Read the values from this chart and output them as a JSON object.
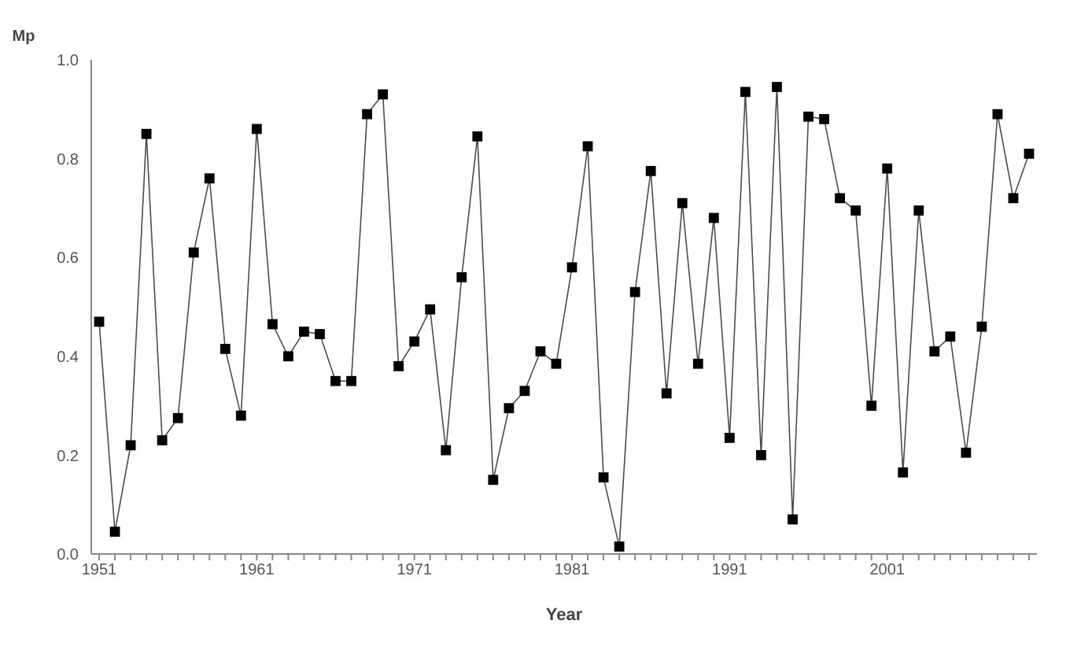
{
  "chart_data": {
    "type": "line",
    "xlabel": "Year",
    "ylabel": "Mp",
    "x": [
      1951,
      1952,
      1953,
      1954,
      1955,
      1956,
      1957,
      1958,
      1959,
      1960,
      1961,
      1962,
      1963,
      1964,
      1965,
      1966,
      1967,
      1968,
      1969,
      1970,
      1971,
      1972,
      1973,
      1974,
      1975,
      1976,
      1977,
      1978,
      1979,
      1980,
      1981,
      1982,
      1983,
      1984,
      1985,
      1986,
      1987,
      1988,
      1989,
      1990,
      1991,
      1992,
      1993,
      1994,
      1995,
      1996,
      1997,
      1998,
      1999,
      2000,
      2001,
      2002,
      2003,
      2004,
      2005,
      2006,
      2007,
      2008,
      2009,
      2010
    ],
    "series": [
      {
        "color": "#000000",
        "values": [
          0.47,
          0.045,
          0.22,
          0.85,
          0.23,
          0.275,
          0.61,
          0.76,
          0.415,
          0.28,
          0.86,
          0.465,
          0.4,
          0.45,
          0.445,
          0.35,
          0.35,
          0.89,
          0.93,
          0.38,
          0.43,
          0.495,
          0.21,
          0.56,
          0.845,
          0.15,
          0.295,
          0.33,
          0.41,
          0.385,
          0.58,
          0.825,
          0.155,
          0.015,
          0.53,
          0.775,
          0.325,
          0.71,
          0.385,
          0.68,
          0.235,
          0.935,
          0.2,
          0.945,
          0.07,
          0.885,
          0.88,
          0.72,
          0.695,
          0.3,
          0.78,
          0.165,
          0.695,
          0.41,
          0.44,
          0.205,
          0.46,
          0.89,
          0.72,
          0.81
        ]
      }
    ],
    "xlim": [
      1950.5,
      2010.5
    ],
    "xticks": [
      1951,
      {
        "value": 1952,
        "label": null
      },
      {
        "value": 1953,
        "label": null
      },
      {
        "value": 1954,
        "label": null
      },
      {
        "value": 1955,
        "label": null
      },
      {
        "value": 1956,
        "label": null
      },
      {
        "value": 1957,
        "label": null
      },
      {
        "value": 1958,
        "label": null
      },
      {
        "value": 1959,
        "label": null
      },
      {
        "value": 1960,
        "label": null
      },
      1961,
      {
        "value": 1962,
        "label": null
      },
      {
        "value": 1963,
        "label": null
      },
      {
        "value": 1964,
        "label": null
      },
      {
        "value": 1965,
        "label": null
      },
      {
        "value": 1966,
        "label": null
      },
      {
        "value": 1967,
        "label": null
      },
      {
        "value": 1968,
        "label": null
      },
      {
        "value": 1969,
        "label": null
      },
      {
        "value": 1970,
        "label": null
      },
      1971,
      {
        "value": 1972,
        "label": null
      },
      {
        "value": 1973,
        "label": null
      },
      {
        "value": 1974,
        "label": null
      },
      {
        "value": 1975,
        "label": null
      },
      {
        "value": 1976,
        "label": null
      },
      {
        "value": 1977,
        "label": null
      },
      {
        "value": 1978,
        "label": null
      },
      {
        "value": 1979,
        "label": null
      },
      {
        "value": 1980,
        "label": null
      },
      1981,
      {
        "value": 1982,
        "label": null
      },
      {
        "value": 1983,
        "label": null
      },
      {
        "value": 1984,
        "label": null
      },
      {
        "value": 1985,
        "label": null
      },
      {
        "value": 1986,
        "label": null
      },
      {
        "value": 1987,
        "label": null
      },
      {
        "value": 1988,
        "label": null
      },
      {
        "value": 1989,
        "label": null
      },
      {
        "value": 1990,
        "label": null
      },
      1991,
      {
        "value": 1992,
        "label": null
      },
      {
        "value": 1993,
        "label": null
      },
      {
        "value": 1994,
        "label": null
      },
      {
        "value": 1995,
        "label": null
      },
      {
        "value": 1996,
        "label": null
      },
      {
        "value": 1997,
        "label": null
      },
      {
        "value": 1998,
        "label": null
      },
      {
        "value": 1999,
        "label": null
      },
      {
        "value": 2000,
        "label": null
      },
      2001,
      {
        "value": 2002,
        "label": null
      },
      {
        "value": 2003,
        "label": null
      },
      {
        "value": 2004,
        "label": null
      },
      {
        "value": 2005,
        "label": null
      },
      {
        "value": 2006,
        "label": null
      },
      {
        "value": 2007,
        "label": null
      },
      {
        "value": 2008,
        "label": null
      },
      {
        "value": 2009,
        "label": null
      },
      {
        "value": 2010,
        "label": null
      }
    ],
    "ylim": [
      0,
      1
    ],
    "yticks": [
      {
        "value": 0,
        "label": "0.0"
      },
      {
        "value": 0.2,
        "label": "0.2"
      },
      {
        "value": 0.4,
        "label": "0.4"
      },
      {
        "value": 0.6,
        "label": "0.6"
      },
      {
        "value": 0.8,
        "label": "0.8"
      },
      {
        "value": 1,
        "label": "1.0"
      }
    ],
    "grid": false,
    "legend": false,
    "marker": "square",
    "line_style": "solid"
  }
}
